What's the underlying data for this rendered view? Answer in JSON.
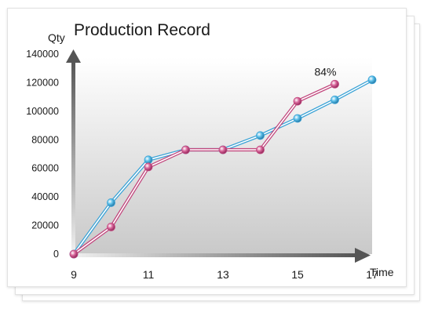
{
  "chart_data": {
    "type": "line",
    "title": "Production Record",
    "ylabel": "Qty",
    "xlabel": "Time",
    "x_ticks": [
      "9",
      "11",
      "13",
      "15",
      "17"
    ],
    "y_ticks": [
      "0",
      "20000",
      "40000",
      "60000",
      "80000",
      "100000",
      "120000",
      "140000"
    ],
    "xlim": [
      9,
      17
    ],
    "ylim": [
      0,
      140000
    ],
    "series": [
      {
        "color": "#3ba3d6",
        "x": [
          9,
          10,
          11,
          12,
          13,
          14,
          15,
          16,
          17
        ],
        "values": [
          0,
          36000,
          66000,
          73000,
          73000,
          83000,
          95000,
          108000,
          122000
        ]
      },
      {
        "color": "#c2487e",
        "x": [
          9,
          10,
          11,
          12,
          13,
          14,
          15,
          16
        ],
        "values": [
          0,
          19000,
          61000,
          73000,
          73000,
          73000,
          107000,
          119000
        ]
      }
    ],
    "annotations": [
      {
        "text": "84%",
        "x": 16,
        "y": 119000
      }
    ],
    "grid": false
  }
}
